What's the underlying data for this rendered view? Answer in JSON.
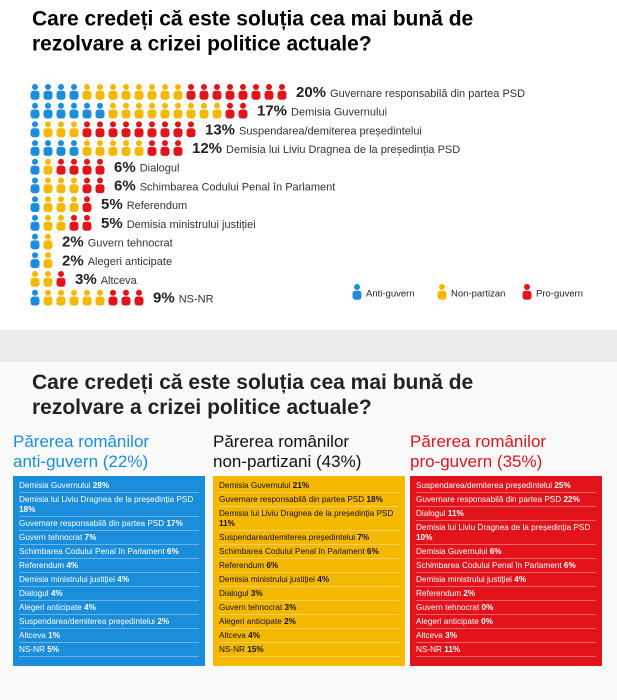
{
  "chart_data": {
    "type": "pictogram",
    "title": [
      "Care credeți că este soluția cea mai bună de",
      "rezolvare a crizei politice actuale?"
    ],
    "categories": [
      "Guvernare responsabilă din partea PSD",
      "Demisia Guvernului",
      "Suspendarea/demiterea președintelui",
      "Demisia lui Liviu Dragnea de la președinția PSD",
      "Dialogul",
      "Schimbarea Codului Penal în Parlament",
      "Referendum",
      "Demisia ministrului justiției",
      "Guvern tehnocrat",
      "Alegeri anticipate",
      "Altceva",
      "NS-NR"
    ],
    "values": [
      20,
      17,
      13,
      12,
      6,
      6,
      5,
      5,
      2,
      2,
      3,
      9
    ],
    "value_labels": [
      "20%",
      "17%",
      "13%",
      "12%",
      "6%",
      "6%",
      "5%",
      "5%",
      "2%",
      "2%",
      "3%",
      "9%"
    ],
    "series": [
      {
        "name": "Anti-guvern",
        "color": "#1a8ddb",
        "values": [
          4,
          6,
          1,
          4,
          1,
          1,
          1,
          1,
          1,
          1,
          0,
          1
        ]
      },
      {
        "name": "Non-partizan",
        "color": "#f5b800",
        "values": [
          8,
          9,
          3,
          5,
          1,
          3,
          3,
          2,
          1,
          1,
          2,
          5
        ]
      },
      {
        "name": "Pro-guvern",
        "color": "#e3131b",
        "values": [
          8,
          2,
          9,
          3,
          4,
          2,
          1,
          2,
          0,
          0,
          1,
          3
        ]
      }
    ],
    "legend": "bottom-right"
  },
  "section2": {
    "title": [
      "Care credeți că este soluția cea mai bună de",
      "rezolvare a crizei politice actuale?"
    ],
    "panels": [
      {
        "heading": [
          "Părerea românilor",
          "anti-guvern (22%)"
        ],
        "color": "#1a8ddb",
        "text_color": "#ffffff",
        "items": [
          [
            "Demisia Guvernului",
            "28%"
          ],
          [
            "Demisia lui Liviu Dragnea de la președinția PSD",
            "18%"
          ],
          [
            "Guvernare responsabilă din partea PSD",
            "17%"
          ],
          [
            "Guvern tehnocrat",
            "7%"
          ],
          [
            "Schimbarea Codului Penal în Parlament",
            "6%"
          ],
          [
            "Referendum",
            "4%"
          ],
          [
            "Demisia ministrului justiției",
            "4%"
          ],
          [
            "Dialogul",
            "4%"
          ],
          [
            "Alegeri anticipate",
            "4%"
          ],
          [
            "Suspendarea/demiterea președintelui",
            "2%"
          ],
          [
            "Altceva",
            "1%"
          ],
          [
            "NS-NR",
            "5%"
          ]
        ]
      },
      {
        "heading": [
          "Părerea românilor",
          "non-partizani (43%)"
        ],
        "color": "#f5b800",
        "text_color": "#111111",
        "items": [
          [
            "Demisia Guvernului",
            "21%"
          ],
          [
            "Guvernare responsabilă din partea PSD",
            "18%"
          ],
          [
            "Demisia lui Liviu Dragnea de la președinția PSD",
            "11%"
          ],
          [
            "Suspendarea/demiterea președintelui",
            "7%"
          ],
          [
            "Schimbarea Codului Penal în Parlament",
            "6%"
          ],
          [
            "Referendum",
            "6%"
          ],
          [
            "Demisia ministrului justiției",
            "4%"
          ],
          [
            "Dialogul",
            "3%"
          ],
          [
            "Guvern tehnocrat",
            "3%"
          ],
          [
            "Alegeri anticipate",
            "2%"
          ],
          [
            "Altceva",
            "4%"
          ],
          [
            "NS-NR",
            "15%"
          ]
        ]
      },
      {
        "heading": [
          "Părerea românilor",
          "pro-guvern (35%)"
        ],
        "color": "#e3131b",
        "text_color": "#ffffff",
        "items": [
          [
            "Suspendarea/demiterea președintelui",
            "25%"
          ],
          [
            "Guvernare responsabilă din partea PSD",
            "22%"
          ],
          [
            "Dialogul",
            "11%"
          ],
          [
            "Demisia lui Liviu Dragnea de la președinția PSD",
            "10%"
          ],
          [
            "Demisia Guvernului",
            "6%"
          ],
          [
            "Schimbarea Codului Penal în Parlament",
            "6%"
          ],
          [
            "Demisia ministrului justiției",
            "4%"
          ],
          [
            "Referendum",
            "2%"
          ],
          [
            "Guvern tehnocrat",
            "0%"
          ],
          [
            "Alegeri anticipate",
            "0%"
          ],
          [
            "Altceva",
            "3%"
          ],
          [
            "NS-NR",
            "11%"
          ]
        ]
      }
    ]
  }
}
